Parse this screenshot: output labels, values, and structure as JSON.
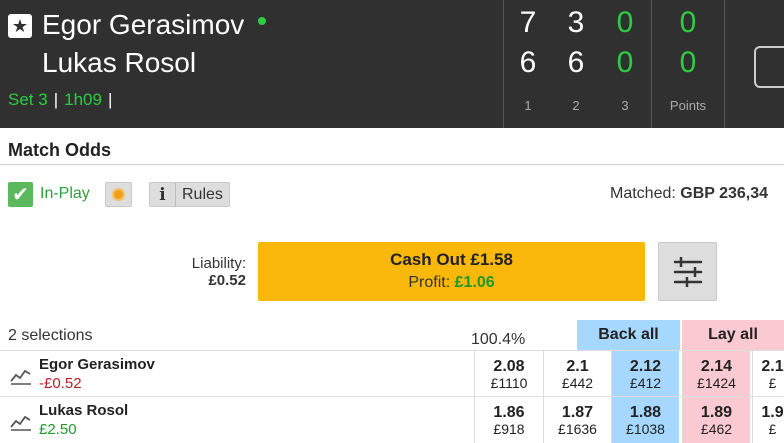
{
  "scoreboard": {
    "player1": "Egor Gerasimov",
    "player2": "Lukas Rosol",
    "set_label": "Set 3",
    "elapsed": "1h09",
    "sets": [
      {
        "label": "1",
        "p1": "7",
        "p2": "6"
      },
      {
        "label": "2",
        "p1": "3",
        "p2": "6"
      },
      {
        "label": "3",
        "p1": "0",
        "p2": "0"
      }
    ],
    "points": {
      "label": "Points",
      "p1": "0",
      "p2": "0"
    }
  },
  "market": {
    "title": "Match Odds",
    "inplay_label": "In-Play",
    "rules_label": "Rules",
    "matched_label": "Matched:",
    "matched_value": "GBP 236,34"
  },
  "cashout": {
    "liability_label": "Liability:",
    "liability_value": "£0.52",
    "button_label": "Cash Out £1.58",
    "profit_label": "Profit:",
    "profit_value": "£1.06"
  },
  "grid": {
    "selections_count": "2 selections",
    "overround": "100.4%",
    "back_all": "Back all",
    "lay_all": "Lay all",
    "runners": [
      {
        "name": "Egor Gerasimov",
        "pl": "-£0.52",
        "prices": [
          {
            "odds": "2.08",
            "size": "£1110"
          },
          {
            "odds": "2.1",
            "size": "£442"
          },
          {
            "odds": "2.12",
            "size": "£412"
          },
          {
            "odds": "2.14",
            "size": "£1424"
          },
          {
            "odds": "2.1",
            "size": "£"
          }
        ]
      },
      {
        "name": "Lukas Rosol",
        "pl": "£2.50",
        "prices": [
          {
            "odds": "1.86",
            "size": "£918"
          },
          {
            "odds": "1.87",
            "size": "£1636"
          },
          {
            "odds": "1.88",
            "size": "£1038"
          },
          {
            "odds": "1.89",
            "size": "£462"
          },
          {
            "odds": "1.9",
            "size": "£"
          }
        ]
      }
    ]
  },
  "icons": {
    "favourite": "star-icon",
    "serve": "serve-dot-icon",
    "inplay": "check-icon",
    "live": "live-video-icon",
    "info": "info-icon",
    "settings": "sliders-icon",
    "runner_chart": "line-chart-icon"
  },
  "colors": {
    "header_bg": "#303030",
    "accent_green": "#2ecc40",
    "cashout": "#f9b80a",
    "back": "#a6d8ff",
    "lay": "#fac9d1"
  }
}
